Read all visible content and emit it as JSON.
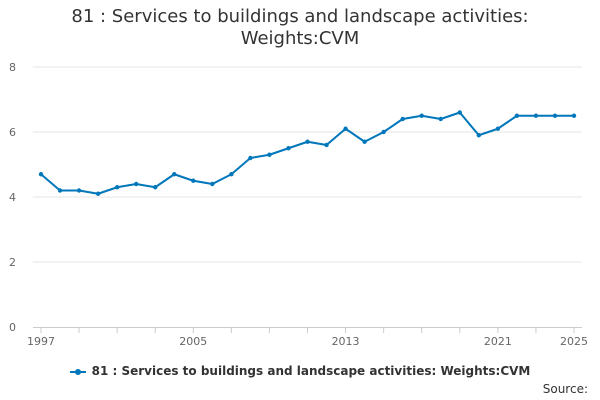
{
  "chart_data": {
    "type": "line",
    "title_lines": [
      "81 : Services to buildings and landscape activities:",
      "Weights:CVM"
    ],
    "x": [
      1997,
      1998,
      1999,
      2000,
      2001,
      2002,
      2003,
      2004,
      2005,
      2006,
      2007,
      2008,
      2009,
      2010,
      2011,
      2012,
      2013,
      2014,
      2015,
      2016,
      2017,
      2018,
      2019,
      2020,
      2021,
      2022,
      2023,
      2024,
      2025
    ],
    "series": [
      {
        "name": "81 : Services to buildings and landscape activities: Weights:CVM",
        "color": "#0077bb",
        "values": [
          4.7,
          4.2,
          4.2,
          4.1,
          4.3,
          4.4,
          4.3,
          4.7,
          4.5,
          4.4,
          4.7,
          5.2,
          5.3,
          5.5,
          5.7,
          5.6,
          6.1,
          5.7,
          6.0,
          6.4,
          6.5,
          6.4,
          6.6,
          5.9,
          6.1,
          6.5,
          6.5,
          6.5,
          6.5
        ]
      }
    ],
    "x_tick_labels": [
      "1997",
      "2005",
      "2013",
      "2021",
      "2025"
    ],
    "y_tick_labels": [
      "0",
      "2",
      "4",
      "6",
      "8"
    ],
    "xlim": [
      1997,
      2025
    ],
    "ylim": [
      0,
      8
    ],
    "xlabel": "",
    "ylabel": "",
    "grid": true,
    "legend_position": "bottom"
  },
  "source_label": "Source:"
}
